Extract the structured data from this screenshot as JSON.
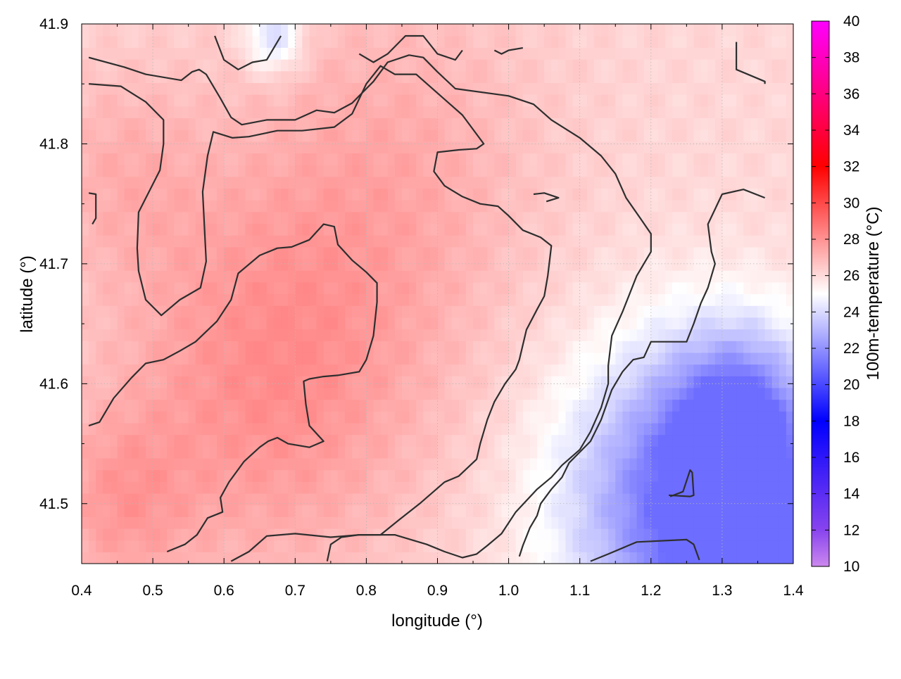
{
  "chart_data": {
    "type": "heatmap",
    "title": "",
    "xlabel": "longitude (°)",
    "ylabel": "latitude (°)",
    "colorbar_label": "100m-temperature (°C)",
    "xlim": [
      0.4,
      1.4
    ],
    "ylim": [
      41.45,
      41.9
    ],
    "x_ticks": [
      "0.4",
      "0.5",
      "0.6",
      "0.7",
      "0.8",
      "0.9",
      "1.0",
      "1.1",
      "1.2",
      "1.3",
      "1.4"
    ],
    "x_tick_values": [
      0.4,
      0.5,
      0.6,
      0.7,
      0.8,
      0.9,
      1.0,
      1.1,
      1.2,
      1.3,
      1.4
    ],
    "y_ticks": [
      "41.5",
      "41.6",
      "41.7",
      "41.8",
      "41.9"
    ],
    "y_tick_values": [
      41.5,
      41.6,
      41.7,
      41.8,
      41.9
    ],
    "colorbar_range": [
      10,
      40
    ],
    "colorbar_ticks": [
      "10",
      "12",
      "14",
      "16",
      "18",
      "20",
      "22",
      "24",
      "26",
      "28",
      "30",
      "32",
      "34",
      "36",
      "38",
      "40"
    ],
    "colorbar_tick_values": [
      10,
      12,
      14,
      16,
      18,
      20,
      22,
      24,
      26,
      28,
      30,
      32,
      34,
      36,
      38,
      40
    ],
    "colorscale": [
      {
        "value": 10,
        "color": "#cc88ee"
      },
      {
        "value": 12,
        "color": "#8844ee"
      },
      {
        "value": 18,
        "color": "#0000ff"
      },
      {
        "value": 25,
        "color": "#ffffff"
      },
      {
        "value": 32,
        "color": "#ff0000"
      },
      {
        "value": 40,
        "color": "#ff00ff"
      }
    ],
    "grid": true,
    "field": {
      "background_value": 26.1,
      "min_value": 21.5,
      "max_value": 28.0,
      "warm_cores": [
        {
          "lon": 0.66,
          "lat": 41.6,
          "value": 28.0,
          "radius": 0.22
        },
        {
          "lon": 0.84,
          "lat": 41.78,
          "value": 27.2,
          "radius": 0.22
        },
        {
          "lon": 0.45,
          "lat": 41.78,
          "value": 27.0,
          "radius": 0.12
        },
        {
          "lon": 0.45,
          "lat": 41.5,
          "value": 27.4,
          "radius": 0.1
        }
      ],
      "cool_regions": [
        {
          "lon": 1.24,
          "lat": 41.5,
          "value": 21.5,
          "radius": 0.17
        },
        {
          "lon": 1.34,
          "lat": 41.46,
          "value": 21.8,
          "radius": 0.1
        },
        {
          "lon": 1.33,
          "lat": 41.57,
          "value": 22.3,
          "radius": 0.1
        },
        {
          "lon": 0.67,
          "lat": 41.89,
          "value": 23.6,
          "radius": 0.04
        }
      ]
    },
    "contours": [
      [
        [
          0.41,
          41.872
        ],
        [
          0.46,
          41.864
        ],
        [
          0.49,
          41.858
        ],
        [
          0.54,
          41.853
        ],
        [
          0.555,
          41.86
        ],
        [
          0.565,
          41.862
        ],
        [
          0.575,
          41.858
        ],
        [
          0.595,
          41.838
        ],
        [
          0.61,
          41.822
        ],
        [
          0.625,
          41.816
        ],
        [
          0.66,
          41.82
        ],
        [
          0.7,
          41.82
        ],
        [
          0.73,
          41.828
        ],
        [
          0.755,
          41.826
        ],
        [
          0.78,
          41.834
        ],
        [
          0.81,
          41.852
        ],
        [
          0.83,
          41.868
        ],
        [
          0.86,
          41.874
        ],
        [
          0.88,
          41.872
        ],
        [
          0.9,
          41.86
        ],
        [
          0.925,
          41.846
        ],
        [
          1.0,
          41.84
        ],
        [
          1.035,
          41.833
        ],
        [
          1.06,
          41.82
        ],
        [
          1.1,
          41.805
        ],
        [
          1.13,
          41.79
        ],
        [
          1.15,
          41.775
        ],
        [
          1.165,
          41.755
        ],
        [
          1.185,
          41.738
        ],
        [
          1.2,
          41.725
        ],
        [
          1.2,
          41.71
        ],
        [
          1.18,
          41.69
        ],
        [
          1.16,
          41.66
        ],
        [
          1.145,
          41.64
        ],
        [
          1.14,
          41.615
        ],
        [
          1.14,
          41.6
        ],
        [
          1.13,
          41.58
        ],
        [
          1.115,
          41.56
        ],
        [
          1.1,
          41.545
        ],
        [
          1.075,
          41.532
        ],
        [
          1.06,
          41.522
        ],
        [
          1.04,
          41.512
        ],
        [
          1.01,
          41.493
        ],
        [
          0.99,
          41.475
        ],
        [
          0.97,
          41.465
        ],
        [
          0.955,
          41.458
        ],
        [
          0.935,
          41.455
        ],
        [
          0.91,
          41.46
        ],
        [
          0.885,
          41.466
        ],
        [
          0.84,
          41.474
        ],
        [
          0.79,
          41.474
        ],
        [
          0.765,
          41.472
        ],
        [
          0.75,
          41.466
        ],
        [
          0.745,
          41.452
        ]
      ],
      [
        [
          0.41,
          41.85
        ],
        [
          0.455,
          41.848
        ],
        [
          0.49,
          41.835
        ],
        [
          0.515,
          41.82
        ],
        [
          0.515,
          41.8
        ],
        [
          0.51,
          41.778
        ],
        [
          0.48,
          41.743
        ],
        [
          0.478,
          41.713
        ],
        [
          0.48,
          41.694
        ],
        [
          0.49,
          41.67
        ],
        [
          0.512,
          41.657
        ],
        [
          0.538,
          41.67
        ],
        [
          0.567,
          41.68
        ],
        [
          0.575,
          41.702
        ],
        [
          0.57,
          41.76
        ],
        [
          0.577,
          41.79
        ],
        [
          0.585,
          41.81
        ],
        [
          0.612,
          41.805
        ],
        [
          0.635,
          41.806
        ],
        [
          0.675,
          41.811
        ],
        [
          0.71,
          41.811
        ],
        [
          0.755,
          41.814
        ],
        [
          0.78,
          41.825
        ],
        [
          0.8,
          41.85
        ],
        [
          0.82,
          41.865
        ],
        [
          0.84,
          41.858
        ],
        [
          0.87,
          41.858
        ],
        [
          0.935,
          41.824
        ],
        [
          0.965,
          41.8
        ],
        [
          0.955,
          41.796
        ],
        [
          0.93,
          41.795
        ],
        [
          0.9,
          41.793
        ],
        [
          0.895,
          41.777
        ],
        [
          0.91,
          41.765
        ],
        [
          0.935,
          41.756
        ],
        [
          0.96,
          41.75
        ],
        [
          0.985,
          41.748
        ],
        [
          1.0,
          41.74
        ],
        [
          1.02,
          41.728
        ],
        [
          1.045,
          41.722
        ],
        [
          1.06,
          41.715
        ],
        [
          1.055,
          41.69
        ],
        [
          1.05,
          41.673
        ],
        [
          1.04,
          41.662
        ],
        [
          1.025,
          41.645
        ],
        [
          1.015,
          41.62
        ],
        [
          1.01,
          41.612
        ],
        [
          0.995,
          41.6
        ],
        [
          0.98,
          41.585
        ],
        [
          0.97,
          41.57
        ],
        [
          0.96,
          41.55
        ],
        [
          0.955,
          41.537
        ],
        [
          0.93,
          41.523
        ],
        [
          0.91,
          41.518
        ],
        [
          0.875,
          41.5
        ],
        [
          0.845,
          41.486
        ],
        [
          0.82,
          41.474
        ],
        [
          0.79,
          41.474
        ],
        [
          0.75,
          41.472
        ],
        [
          0.7,
          41.475
        ],
        [
          0.66,
          41.473
        ],
        [
          0.635,
          41.46
        ],
        [
          0.61,
          41.452
        ]
      ],
      [
        [
          0.41,
          41.565
        ],
        [
          0.425,
          41.568
        ],
        [
          0.445,
          41.588
        ],
        [
          0.47,
          41.605
        ],
        [
          0.49,
          41.617
        ],
        [
          0.515,
          41.62
        ],
        [
          0.54,
          41.628
        ],
        [
          0.56,
          41.635
        ],
        [
          0.59,
          41.652
        ],
        [
          0.61,
          41.67
        ],
        [
          0.62,
          41.692
        ],
        [
          0.65,
          41.707
        ],
        [
          0.675,
          41.713
        ],
        [
          0.695,
          41.714
        ],
        [
          0.72,
          41.72
        ],
        [
          0.74,
          41.733
        ],
        [
          0.755,
          41.731
        ],
        [
          0.76,
          41.716
        ],
        [
          0.78,
          41.703
        ],
        [
          0.8,
          41.693
        ],
        [
          0.815,
          41.684
        ],
        [
          0.815,
          41.668
        ],
        [
          0.81,
          41.64
        ],
        [
          0.8,
          41.62
        ],
        [
          0.79,
          41.61
        ],
        [
          0.76,
          41.607
        ],
        [
          0.74,
          41.606
        ],
        [
          0.72,
          41.604
        ],
        [
          0.712,
          41.602
        ],
        [
          0.715,
          41.583
        ],
        [
          0.72,
          41.565
        ],
        [
          0.74,
          41.552
        ],
        [
          0.72,
          41.547
        ],
        [
          0.69,
          41.55
        ],
        [
          0.675,
          41.555
        ],
        [
          0.662,
          41.552
        ],
        [
          0.65,
          41.547
        ],
        [
          0.628,
          41.535
        ],
        [
          0.607,
          41.518
        ],
        [
          0.595,
          41.505
        ],
        [
          0.598,
          41.493
        ],
        [
          0.577,
          41.488
        ],
        [
          0.562,
          41.474
        ],
        [
          0.545,
          41.466
        ],
        [
          0.52,
          41.46
        ]
      ],
      [
        [
          0.41,
          41.759
        ],
        [
          0.42,
          41.758
        ],
        [
          0.42,
          41.738
        ],
        [
          0.415,
          41.733
        ]
      ],
      [
        [
          1.035,
          41.758
        ],
        [
          1.05,
          41.759
        ],
        [
          1.07,
          41.755
        ],
        [
          1.053,
          41.752
        ]
      ],
      [
        [
          1.32,
          41.885
        ],
        [
          1.32,
          41.862
        ],
        [
          1.36,
          41.852
        ],
        [
          1.36,
          41.85
        ]
      ],
      [
        [
          1.36,
          41.755
        ],
        [
          1.33,
          41.762
        ],
        [
          1.3,
          41.758
        ],
        [
          1.28,
          41.733
        ],
        [
          1.285,
          41.71
        ],
        [
          1.29,
          41.7
        ],
        [
          1.28,
          41.68
        ],
        [
          1.27,
          41.667
        ],
        [
          1.26,
          41.65
        ],
        [
          1.25,
          41.635
        ],
        [
          1.2,
          41.635
        ],
        [
          1.19,
          41.622
        ],
        [
          1.175,
          41.62
        ],
        [
          1.16,
          41.61
        ],
        [
          1.145,
          41.595
        ],
        [
          1.13,
          41.57
        ],
        [
          1.115,
          41.552
        ],
        [
          1.1,
          41.543
        ],
        [
          1.085,
          41.534
        ],
        [
          1.075,
          41.522
        ],
        [
          1.06,
          41.512
        ],
        [
          1.045,
          41.5
        ],
        [
          1.04,
          41.49
        ],
        [
          1.03,
          41.48
        ],
        [
          1.02,
          41.465
        ],
        [
          1.015,
          41.456
        ]
      ],
      [
        [
          1.225,
          41.507
        ],
        [
          1.255,
          41.506
        ],
        [
          1.26,
          41.507
        ],
        [
          1.258,
          41.526
        ],
        [
          1.255,
          41.528
        ],
        [
          1.245,
          41.51
        ],
        [
          1.227,
          41.506
        ]
      ],
      [
        [
          1.115,
          41.452
        ],
        [
          1.14,
          41.458
        ],
        [
          1.16,
          41.463
        ],
        [
          1.18,
          41.468
        ],
        [
          1.25,
          41.47
        ],
        [
          1.26,
          41.466
        ],
        [
          1.268,
          41.453
        ]
      ],
      [
        [
          0.587,
          41.89
        ],
        [
          0.6,
          41.87
        ],
        [
          0.62,
          41.862
        ],
        [
          0.64,
          41.868
        ],
        [
          0.66,
          41.87
        ],
        [
          0.68,
          41.89
        ]
      ],
      [
        [
          0.79,
          41.875
        ],
        [
          0.81,
          41.868
        ],
        [
          0.83,
          41.875
        ],
        [
          0.855,
          41.89
        ],
        [
          0.88,
          41.89
        ],
        [
          0.9,
          41.875
        ],
        [
          0.925,
          41.87
        ],
        [
          0.935,
          41.878
        ]
      ],
      [
        [
          0.98,
          41.878
        ],
        [
          0.99,
          41.875
        ],
        [
          1.0,
          41.878
        ],
        [
          1.02,
          41.88
        ]
      ]
    ]
  }
}
